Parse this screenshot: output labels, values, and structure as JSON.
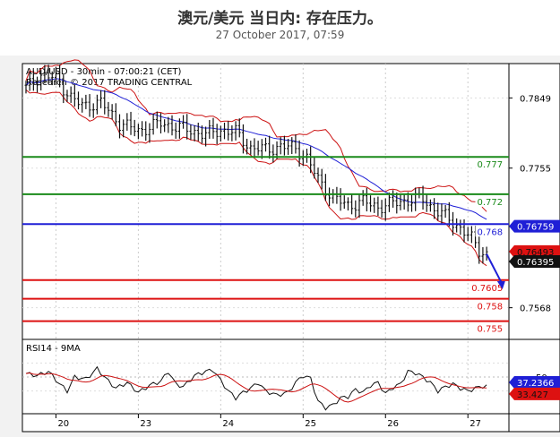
{
  "header": {
    "title": "澳元/美元 当日内: 存在压力。",
    "date": "27 October 2017, 07:59"
  },
  "chart_data": {
    "type": "candlestick",
    "info": {
      "line1": "AUD/USD - 30min - 07:00:21 (CET)",
      "line2": "Research © 2017 TRADING CENTRAL"
    },
    "price_axis": {
      "ylim": [
        0.7528,
        0.7895
      ],
      "ticks": [
        0.7849,
        0.7755,
        0.7568
      ]
    },
    "x_tick_labels": [
      "20",
      "23",
      "24",
      "25",
      "26",
      "27"
    ],
    "levels": [
      {
        "value": 0.777,
        "label": "0.777",
        "color": "#1a8a1a"
      },
      {
        "value": 0.772,
        "label": "0.772",
        "color": "#1a8a1a"
      },
      {
        "value": 0.768,
        "label": "0.768",
        "color": "#1f1fd6"
      },
      {
        "value": 0.7605,
        "label": "0.7605",
        "color": "#dd1111"
      },
      {
        "value": 0.758,
        "label": "0.758",
        "color": "#dd1111"
      },
      {
        "value": 0.755,
        "label": "0.755",
        "color": "#dd1111"
      }
    ],
    "price_tags": [
      {
        "value": 0.76759,
        "label": "0.76759",
        "color": "#1f1fd6"
      },
      {
        "value": 0.76493,
        "label": "0.76493",
        "color": "#dd1111"
      },
      {
        "value": 0.76395,
        "label": "0.76395",
        "color": "#111111"
      }
    ],
    "price_path": [
      [
        0,
        0.7862
      ],
      [
        4,
        0.788
      ],
      [
        8,
        0.7875
      ],
      [
        12,
        0.785
      ],
      [
        15,
        0.7838
      ],
      [
        20,
        0.7843
      ],
      [
        25,
        0.7815
      ],
      [
        30,
        0.7805
      ],
      [
        36,
        0.7815
      ],
      [
        42,
        0.7808
      ],
      [
        48,
        0.78
      ],
      [
        52,
        0.7806
      ],
      [
        56,
        0.7803
      ],
      [
        60,
        0.7782
      ],
      [
        64,
        0.778
      ],
      [
        68,
        0.7784
      ],
      [
        72,
        0.7782
      ],
      [
        75,
        0.7768
      ],
      [
        78,
        0.774
      ],
      [
        82,
        0.7715
      ],
      [
        86,
        0.7705
      ],
      [
        90,
        0.771
      ],
      [
        94,
        0.7703
      ],
      [
        98,
        0.7708
      ],
      [
        102,
        0.7712
      ],
      [
        106,
        0.7714
      ],
      [
        108,
        0.7704
      ],
      [
        112,
        0.769
      ],
      [
        116,
        0.7675
      ],
      [
        119,
        0.766
      ],
      [
        121,
        0.7645
      ],
      [
        123,
        0.764
      ]
    ],
    "projection": {
      "from": [
        123,
        0.764
      ],
      "to": [
        127,
        0.7594
      ]
    },
    "rsi": {
      "label": "RSI14 - 9MA",
      "ylim": [
        0,
        100
      ],
      "level": 50,
      "level_label": "50",
      "rsi_tag": {
        "value": 37.2366,
        "label": "37.2366"
      },
      "ma_tag": {
        "value": 33.427,
        "label": "33.427"
      },
      "path": [
        [
          0,
          55
        ],
        [
          3,
          52
        ],
        [
          6,
          58
        ],
        [
          9,
          40
        ],
        [
          11,
          30
        ],
        [
          13,
          50
        ],
        [
          16,
          47
        ],
        [
          19,
          62
        ],
        [
          22,
          44
        ],
        [
          24,
          34
        ],
        [
          27,
          42
        ],
        [
          30,
          28
        ],
        [
          33,
          38
        ],
        [
          36,
          44
        ],
        [
          38,
          58
        ],
        [
          40,
          40
        ],
        [
          42,
          36
        ],
        [
          45,
          52
        ],
        [
          48,
          58
        ],
        [
          50,
          60
        ],
        [
          52,
          45
        ],
        [
          54,
          30
        ],
        [
          56,
          20
        ],
        [
          58,
          28
        ],
        [
          60,
          34
        ],
        [
          62,
          42
        ],
        [
          64,
          30
        ],
        [
          67,
          24
        ],
        [
          70,
          28
        ],
        [
          72,
          42
        ],
        [
          74,
          52
        ],
        [
          76,
          48
        ],
        [
          78,
          15
        ],
        [
          80,
          6
        ],
        [
          82,
          10
        ],
        [
          84,
          20
        ],
        [
          86,
          22
        ],
        [
          88,
          32
        ],
        [
          90,
          28
        ],
        [
          92,
          38
        ],
        [
          94,
          42
        ],
        [
          96,
          26
        ],
        [
          98,
          35
        ],
        [
          100,
          40
        ],
        [
          102,
          58
        ],
        [
          104,
          56
        ],
        [
          106,
          50
        ],
        [
          108,
          42
        ],
        [
          110,
          30
        ],
        [
          112,
          36
        ],
        [
          114,
          40
        ],
        [
          116,
          34
        ],
        [
          118,
          30
        ],
        [
          120,
          34
        ],
        [
          122,
          37
        ]
      ]
    }
  }
}
